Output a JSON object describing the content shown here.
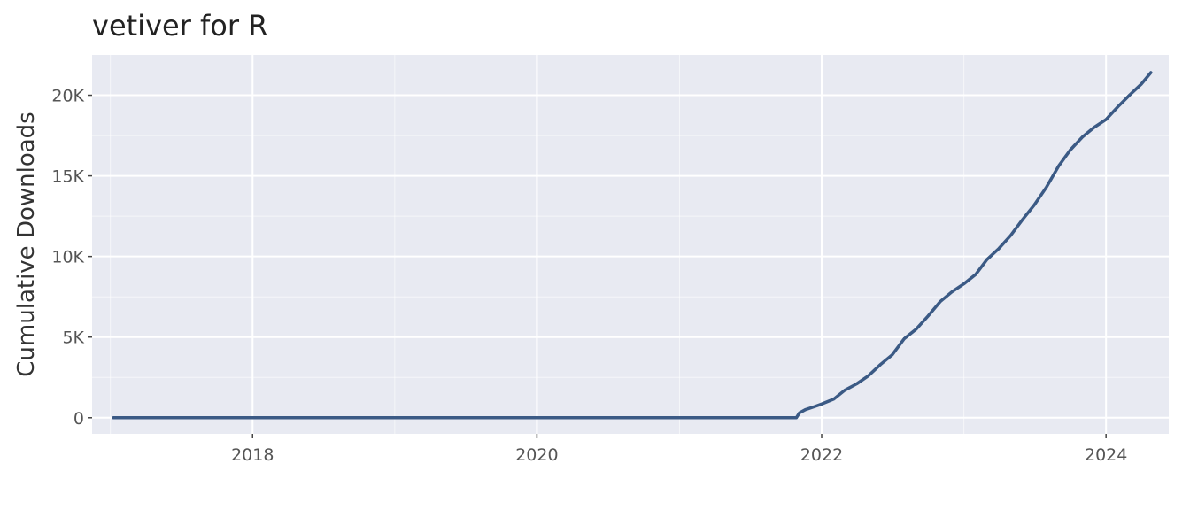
{
  "chart_data": {
    "type": "line",
    "title": "vetiver for R",
    "xlabel": "",
    "ylabel": "Cumulative Downloads",
    "xlim": [
      "2016-11-15",
      "2024-06-10"
    ],
    "ylim": [
      -1000,
      22500
    ],
    "x_ticks": [
      "2018",
      "2020",
      "2022",
      "2024"
    ],
    "y_ticks": [
      "0",
      "5K",
      "10K",
      "15K",
      "20K"
    ],
    "y_tick_values": [
      0,
      5000,
      10000,
      15000,
      20000
    ],
    "grid": true,
    "line_color": "#3b5a85",
    "panel_background": "#e8eaf2",
    "series": [
      {
        "points": [
          [
            "2017-01-09",
            0
          ],
          [
            "2018-01-01",
            0
          ],
          [
            "2019-01-01",
            0
          ],
          [
            "2020-01-01",
            0
          ],
          [
            "2021-01-01",
            0
          ],
          [
            "2021-10-28",
            0
          ],
          [
            "2021-11-05",
            300
          ],
          [
            "2021-11-20",
            500
          ],
          [
            "2021-12-15",
            700
          ],
          [
            "2022-01-01",
            850
          ],
          [
            "2022-02-01",
            1150
          ],
          [
            "2022-03-01",
            1700
          ],
          [
            "2022-04-01",
            2100
          ],
          [
            "2022-05-01",
            2600
          ],
          [
            "2022-06-01",
            3300
          ],
          [
            "2022-07-01",
            3900
          ],
          [
            "2022-08-01",
            4900
          ],
          [
            "2022-09-01",
            5500
          ],
          [
            "2022-10-01",
            6300
          ],
          [
            "2022-11-01",
            7200
          ],
          [
            "2022-12-01",
            7800
          ],
          [
            "2023-01-01",
            8300
          ],
          [
            "2023-02-01",
            8900
          ],
          [
            "2023-03-01",
            9800
          ],
          [
            "2023-04-01",
            10500
          ],
          [
            "2023-05-01",
            11300
          ],
          [
            "2023-06-01",
            12300
          ],
          [
            "2023-07-01",
            13200
          ],
          [
            "2023-08-01",
            14300
          ],
          [
            "2023-09-01",
            15600
          ],
          [
            "2023-10-01",
            16600
          ],
          [
            "2023-11-01",
            17400
          ],
          [
            "2023-12-01",
            18000
          ],
          [
            "2024-01-01",
            18500
          ],
          [
            "2024-02-01",
            19300
          ],
          [
            "2024-03-01",
            20000
          ],
          [
            "2024-04-01",
            20700
          ],
          [
            "2024-04-25",
            21400
          ]
        ]
      }
    ]
  }
}
